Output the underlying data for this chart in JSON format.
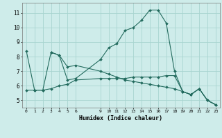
{
  "xlabel": "Humidex (Indice chaleur)",
  "bg_color": "#ceecea",
  "grid_color": "#a8d5d0",
  "line_color": "#236b5e",
  "curve1_x": [
    0,
    1,
    2,
    3,
    4,
    5,
    6,
    9,
    10,
    11,
    12,
    13,
    14,
    15,
    16,
    17,
    18,
    19,
    20,
    21,
    22,
    23
  ],
  "curve1_y": [
    8.4,
    5.7,
    5.7,
    8.3,
    8.1,
    6.4,
    6.5,
    7.8,
    8.6,
    8.9,
    9.8,
    10.0,
    10.5,
    11.2,
    11.2,
    10.3,
    7.0,
    5.6,
    5.4,
    5.8,
    5.0,
    4.7
  ],
  "curve2_x": [
    0,
    1,
    2,
    3,
    4,
    5,
    6,
    9,
    10,
    11,
    12,
    13,
    14,
    15,
    16,
    17,
    18,
    19,
    20,
    21,
    22,
    23
  ],
  "curve2_y": [
    5.7,
    5.7,
    5.7,
    5.8,
    6.0,
    6.1,
    6.4,
    6.5,
    6.5,
    6.5,
    6.5,
    6.6,
    6.6,
    6.6,
    6.6,
    6.7,
    6.7,
    5.6,
    5.4,
    5.8,
    5.0,
    4.7
  ],
  "curve3_x": [
    3,
    4,
    5,
    6,
    9,
    10,
    11,
    12,
    13,
    14,
    15,
    16,
    17,
    18,
    19,
    20,
    21,
    22,
    23
  ],
  "curve3_y": [
    8.3,
    8.1,
    7.3,
    7.4,
    7.0,
    6.8,
    6.6,
    6.4,
    6.3,
    6.2,
    6.1,
    6.0,
    5.9,
    5.8,
    5.6,
    5.4,
    5.8,
    5.0,
    4.7
  ],
  "xticks": [
    0,
    1,
    2,
    3,
    4,
    5,
    6,
    9,
    10,
    11,
    12,
    13,
    14,
    15,
    16,
    17,
    18,
    19,
    20,
    21,
    22,
    23
  ],
  "xtick_labels": [
    "0",
    "1",
    "2",
    "3",
    "4",
    "5",
    "6",
    "9",
    "10",
    "11",
    "12",
    "13",
    "14",
    "15",
    "16",
    "17",
    "18",
    "19",
    "20",
    "21",
    "22",
    "23"
  ],
  "yticks": [
    5,
    6,
    7,
    8,
    9,
    10,
    11
  ],
  "ylim": [
    4.5,
    11.7
  ],
  "xlim": [
    -0.5,
    23.5
  ]
}
